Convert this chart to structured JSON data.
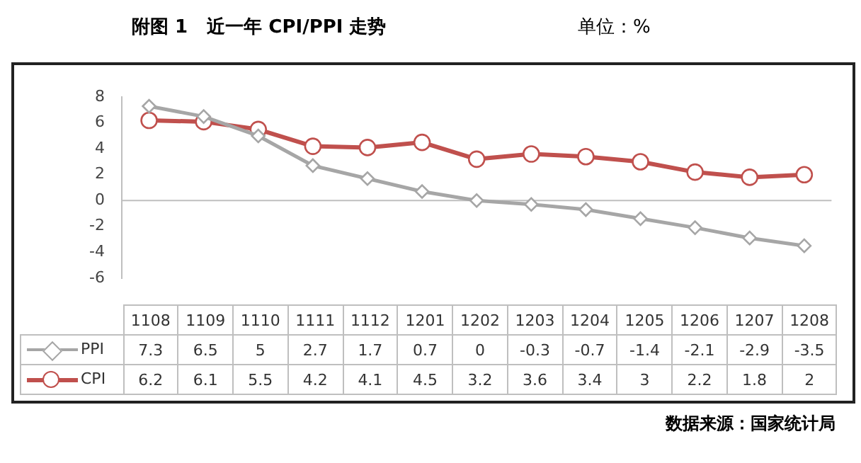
{
  "chart_data": {
    "type": "line",
    "title": "附图 1   近一年 CPI/PPI 走势",
    "annotations": [
      "单位：%",
      "数据来源：国家统计局"
    ],
    "categories": [
      "1108",
      "1109",
      "1110",
      "1111",
      "1112",
      "1201",
      "1202",
      "1203",
      "1204",
      "1205",
      "1206",
      "1207",
      "1208"
    ],
    "series": [
      {
        "name": "PPI",
        "color": "#a6a6a6",
        "marker": "diamond",
        "values": [
          7.3,
          6.5,
          5,
          2.7,
          1.7,
          0.7,
          0,
          -0.3,
          -0.7,
          -1.4,
          -2.1,
          -2.9,
          -3.5
        ]
      },
      {
        "name": "CPI",
        "color": "#c0504d",
        "marker": "circle",
        "values": [
          6.2,
          6.1,
          5.5,
          4.2,
          4.1,
          4.5,
          3.2,
          3.6,
          3.4,
          3,
          2.2,
          1.8,
          2
        ]
      }
    ],
    "ylim": [
      -6,
      8
    ],
    "yticks": [
      -6,
      -4,
      -2,
      0,
      2,
      4,
      6,
      8
    ],
    "grid": false,
    "legend": "bottom",
    "data_labels": true,
    "ref_lines": [
      {
        "axis": "y",
        "value": 0,
        "color": "#bfbfbf"
      }
    ]
  }
}
